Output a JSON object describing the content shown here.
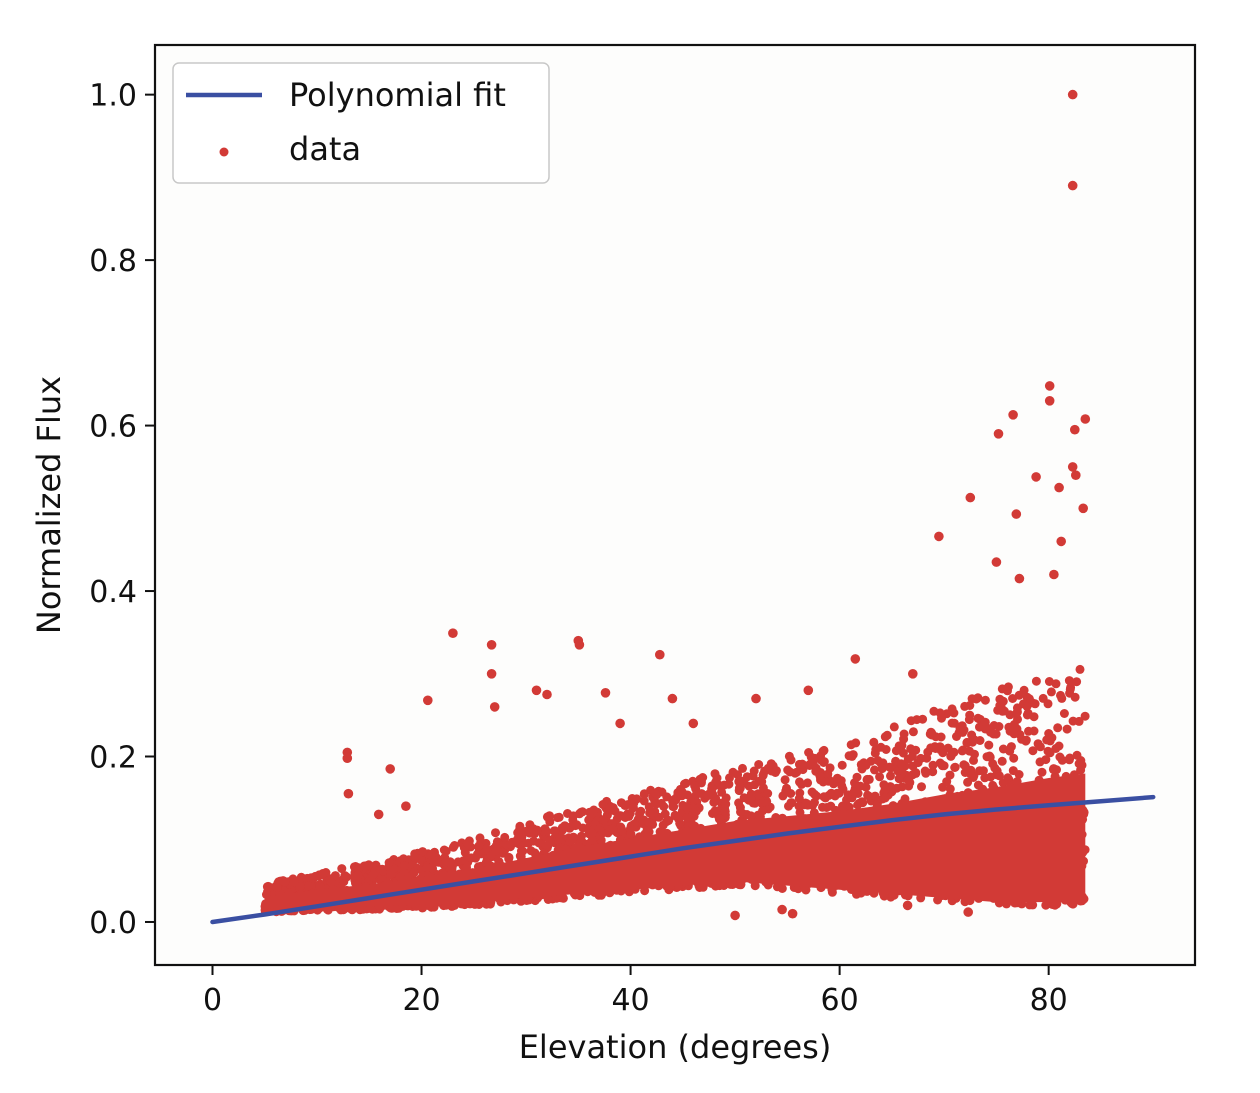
{
  "chart_data": {
    "type": "scatter",
    "title": "",
    "xlabel": "Elevation (degrees)",
    "ylabel": "Normalized Flux",
    "xlim": [
      -5.5,
      94
    ],
    "ylim": [
      -0.052,
      1.06
    ],
    "x_ticks": [
      0,
      20,
      40,
      60,
      80
    ],
    "y_ticks": [
      0.0,
      0.2,
      0.4,
      0.6,
      0.8,
      1.0
    ],
    "x_tick_labels": [
      "0",
      "20",
      "40",
      "60",
      "80"
    ],
    "y_tick_labels": [
      "0.0",
      "0.2",
      "0.4",
      "0.6",
      "0.8",
      "1.0"
    ],
    "grid": false,
    "legend_position": "top-left",
    "colors": {
      "data": "#d23a36",
      "fit": "#3a4fa2",
      "axes": "#111111"
    },
    "series": [
      {
        "name": "Polynomial fit",
        "kind": "line",
        "x": [
          0,
          5,
          10,
          15,
          20,
          25,
          30,
          35,
          40,
          45,
          50,
          55,
          60,
          65,
          70,
          75,
          80,
          85,
          90
        ],
        "y": [
          0.0,
          0.009,
          0.019,
          0.029,
          0.039,
          0.049,
          0.059,
          0.069,
          0.079,
          0.089,
          0.098,
          0.107,
          0.115,
          0.123,
          0.13,
          0.136,
          0.141,
          0.146,
          0.151
        ]
      },
      {
        "name": "data",
        "kind": "scatter",
        "x_range": [
          5,
          83.5
        ],
        "band": {
          "x": [
            5,
            10,
            15,
            20,
            25,
            30,
            35,
            40,
            45,
            50,
            55,
            60,
            65,
            70,
            75,
            80,
            83.5
          ],
          "low": [
            0.012,
            0.014,
            0.015,
            0.017,
            0.02,
            0.025,
            0.03,
            0.035,
            0.04,
            0.045,
            0.04,
            0.035,
            0.03,
            0.025,
            0.02,
            0.02,
            0.02
          ],
          "high": [
            0.045,
            0.06,
            0.07,
            0.085,
            0.1,
            0.12,
            0.14,
            0.155,
            0.17,
            0.185,
            0.2,
            0.215,
            0.235,
            0.26,
            0.28,
            0.3,
            0.31
          ]
        },
        "outliers": [
          {
            "x": 82.3,
            "y": 1.0
          },
          {
            "x": 82.3,
            "y": 0.89
          },
          {
            "x": 80.1,
            "y": 0.648
          },
          {
            "x": 80.1,
            "y": 0.63
          },
          {
            "x": 83.5,
            "y": 0.608
          },
          {
            "x": 76.6,
            "y": 0.613
          },
          {
            "x": 82.5,
            "y": 0.595
          },
          {
            "x": 75.2,
            "y": 0.59
          },
          {
            "x": 82.3,
            "y": 0.55
          },
          {
            "x": 82.6,
            "y": 0.54
          },
          {
            "x": 78.8,
            "y": 0.538
          },
          {
            "x": 72.5,
            "y": 0.513
          },
          {
            "x": 81.0,
            "y": 0.525
          },
          {
            "x": 76.9,
            "y": 0.493
          },
          {
            "x": 83.3,
            "y": 0.5
          },
          {
            "x": 69.5,
            "y": 0.466
          },
          {
            "x": 81.2,
            "y": 0.46
          },
          {
            "x": 75.0,
            "y": 0.435
          },
          {
            "x": 77.2,
            "y": 0.415
          },
          {
            "x": 80.5,
            "y": 0.42
          },
          {
            "x": 23.0,
            "y": 0.349
          },
          {
            "x": 35.0,
            "y": 0.34
          },
          {
            "x": 35.1,
            "y": 0.335
          },
          {
            "x": 26.7,
            "y": 0.335
          },
          {
            "x": 42.8,
            "y": 0.323
          },
          {
            "x": 61.5,
            "y": 0.318
          },
          {
            "x": 26.7,
            "y": 0.3
          },
          {
            "x": 31.0,
            "y": 0.28
          },
          {
            "x": 37.6,
            "y": 0.277
          },
          {
            "x": 20.6,
            "y": 0.268
          },
          {
            "x": 32.0,
            "y": 0.275
          },
          {
            "x": 44.0,
            "y": 0.27
          },
          {
            "x": 27.0,
            "y": 0.26
          },
          {
            "x": 46.0,
            "y": 0.24
          },
          {
            "x": 39.0,
            "y": 0.24
          },
          {
            "x": 12.9,
            "y": 0.205
          },
          {
            "x": 12.9,
            "y": 0.198
          },
          {
            "x": 17.0,
            "y": 0.185
          },
          {
            "x": 13.0,
            "y": 0.155
          },
          {
            "x": 15.9,
            "y": 0.13
          },
          {
            "x": 18.5,
            "y": 0.14
          },
          {
            "x": 57.0,
            "y": 0.28
          },
          {
            "x": 67.0,
            "y": 0.3
          },
          {
            "x": 52.0,
            "y": 0.27
          },
          {
            "x": 55.5,
            "y": 0.01
          },
          {
            "x": 54.5,
            "y": 0.015
          },
          {
            "x": 50.0,
            "y": 0.008
          },
          {
            "x": 72.3,
            "y": 0.012
          },
          {
            "x": 66.5,
            "y": 0.02
          }
        ]
      }
    ]
  }
}
